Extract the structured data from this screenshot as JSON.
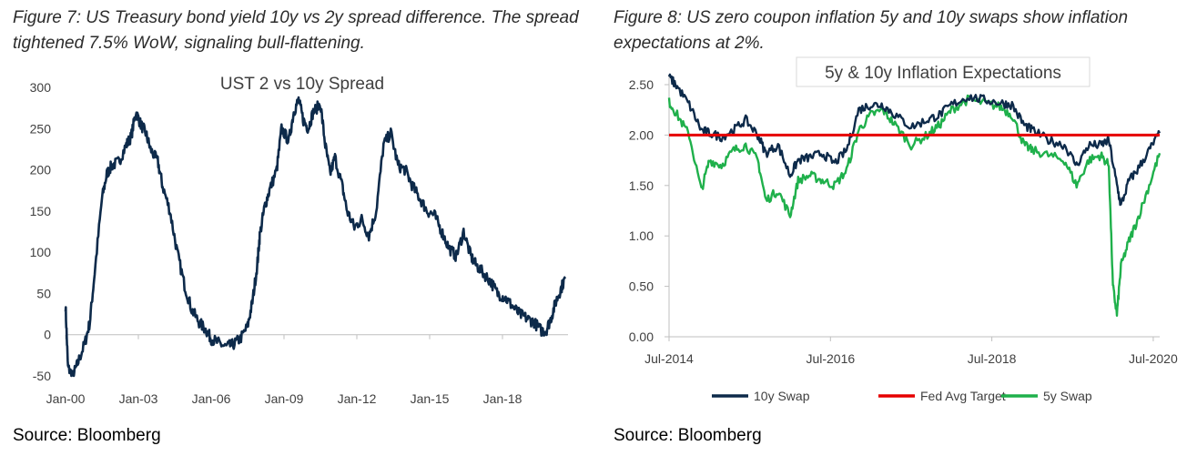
{
  "figures": [
    {
      "caption": "Figure 7: US Treasury bond yield 10y vs 2y spread difference. The spread tightened 7.5% WoW, signaling bull-flattening.",
      "source": "Source: Bloomberg"
    },
    {
      "caption": "Figure 8: US zero coupon inflation 5y and 10y swaps show inflation expectations at 2%.",
      "source": "Source: Bloomberg"
    }
  ],
  "colors": {
    "navy": "#0d2a4a",
    "red": "#e60000",
    "green": "#1fb04b",
    "axis": "#bfbfbf",
    "tick": "#404040"
  },
  "chart_data": [
    {
      "type": "line",
      "title": "UST 2 vs 10y Spread",
      "xlabel": "",
      "ylabel": "",
      "x_ticks": [
        "Jan-00",
        "Jan-03",
        "Jan-06",
        "Jan-09",
        "Jan-12",
        "Jan-15",
        "Jan-18"
      ],
      "xlim": [
        2000.0,
        2020.7
      ],
      "y_ticks": [
        300,
        250,
        200,
        150,
        100,
        50,
        0,
        -50
      ],
      "ylim": [
        -50,
        300
      ],
      "grid": false,
      "series": [
        {
          "color": "#0d2a4a",
          "x": [
            2000.0,
            2000.1,
            2000.3,
            2000.5,
            2000.8,
            2001.0,
            2001.2,
            2001.5,
            2001.7,
            2001.9,
            2002.2,
            2002.5,
            2002.7,
            2002.9,
            2003.1,
            2003.3,
            2003.5,
            2003.8,
            2004.0,
            2004.3,
            2004.6,
            2004.9,
            2005.2,
            2005.5,
            2005.8,
            2006.0,
            2006.3,
            2006.6,
            2006.9,
            2007.2,
            2007.5,
            2007.7,
            2007.9,
            2008.0,
            2008.2,
            2008.4,
            2008.7,
            2008.9,
            2009.2,
            2009.4,
            2009.6,
            2009.8,
            2010.0,
            2010.2,
            2010.5,
            2010.7,
            2010.9,
            2011.1,
            2011.4,
            2011.6,
            2011.9,
            2012.2,
            2012.5,
            2012.8,
            2013.1,
            2013.4,
            2013.7,
            2014.0,
            2014.3,
            2014.6,
            2014.9,
            2015.2,
            2015.5,
            2015.8,
            2016.1,
            2016.4,
            2016.7,
            2016.9,
            2017.2,
            2017.5,
            2017.8,
            2018.1,
            2018.4,
            2018.7,
            2019.0,
            2019.3,
            2019.6,
            2019.8,
            2020.0,
            2020.2,
            2020.4,
            2020.6
          ],
          "y": [
            35,
            -40,
            -50,
            -35,
            -10,
            15,
            75,
            165,
            195,
            205,
            210,
            230,
            240,
            270,
            255,
            245,
            225,
            210,
            180,
            150,
            100,
            60,
            30,
            15,
            5,
            -5,
            -10,
            -15,
            -12,
            -5,
            10,
            40,
            85,
            120,
            155,
            175,
            200,
            250,
            235,
            270,
            285,
            260,
            250,
            270,
            280,
            230,
            195,
            215,
            180,
            150,
            130,
            140,
            120,
            150,
            230,
            245,
            205,
            200,
            180,
            165,
            150,
            145,
            125,
            105,
            95,
            125,
            95,
            85,
            75,
            65,
            50,
            45,
            35,
            25,
            20,
            15,
            5,
            5,
            20,
            40,
            55,
            70
          ]
        }
      ]
    },
    {
      "type": "line",
      "title": "5y & 10y  Inflation Expectations",
      "xlabel": "",
      "ylabel": "",
      "x_ticks": [
        "Jul-2014",
        "Jul-2016",
        "Jul-2018",
        "Jul-2020"
      ],
      "xlim": [
        2014.5,
        2020.58
      ],
      "y_ticks": [
        "2.50",
        "2.00",
        "1.50",
        "1.00",
        "0.50",
        "0.00"
      ],
      "ylim": [
        0,
        2.5
      ],
      "grid": false,
      "legend": "bottom",
      "series": [
        {
          "name": "10y Swap",
          "color": "#0d2a4a",
          "x": [
            2014.5,
            2014.6,
            2014.75,
            2014.9,
            2015.0,
            2015.15,
            2015.3,
            2015.45,
            2015.6,
            2015.7,
            2015.85,
            2016.0,
            2016.1,
            2016.25,
            2016.4,
            2016.55,
            2016.7,
            2016.85,
            2017.0,
            2017.15,
            2017.3,
            2017.5,
            2017.7,
            2017.85,
            2018.0,
            2018.2,
            2018.4,
            2018.6,
            2018.75,
            2018.9,
            2019.0,
            2019.2,
            2019.4,
            2019.55,
            2019.7,
            2019.85,
            2019.95,
            2020.05,
            2020.1,
            2020.2,
            2020.3,
            2020.45,
            2020.58
          ],
          "y": [
            2.58,
            2.48,
            2.3,
            2.05,
            2.02,
            1.98,
            2.05,
            2.15,
            2.0,
            1.82,
            1.9,
            1.6,
            1.75,
            1.78,
            1.82,
            1.72,
            1.85,
            2.25,
            2.3,
            2.3,
            2.2,
            2.08,
            2.15,
            2.2,
            2.3,
            2.38,
            2.35,
            2.32,
            2.3,
            2.1,
            2.05,
            1.95,
            1.9,
            1.7,
            1.9,
            1.9,
            1.95,
            1.5,
            1.3,
            1.55,
            1.65,
            1.85,
            2.02
          ]
        },
        {
          "name": "Fed Avg Target",
          "color": "#e60000",
          "x": [
            2014.5,
            2020.58
          ],
          "y": [
            2.0,
            2.0
          ]
        },
        {
          "name": "5y Swap",
          "color": "#1fb04b",
          "x": [
            2014.5,
            2014.6,
            2014.75,
            2014.9,
            2015.0,
            2015.15,
            2015.3,
            2015.45,
            2015.6,
            2015.7,
            2015.85,
            2016.0,
            2016.1,
            2016.25,
            2016.4,
            2016.55,
            2016.7,
            2016.85,
            2017.0,
            2017.15,
            2017.3,
            2017.5,
            2017.7,
            2017.85,
            2018.0,
            2018.2,
            2018.4,
            2018.6,
            2018.75,
            2018.9,
            2019.0,
            2019.2,
            2019.4,
            2019.55,
            2019.7,
            2019.85,
            2019.95,
            2020.0,
            2020.05,
            2020.1,
            2020.2,
            2020.3,
            2020.45,
            2020.58
          ],
          "y": [
            2.33,
            2.2,
            2.0,
            1.45,
            1.75,
            1.7,
            1.85,
            1.9,
            1.75,
            1.35,
            1.45,
            1.2,
            1.55,
            1.6,
            1.55,
            1.5,
            1.65,
            2.05,
            2.2,
            2.25,
            2.1,
            1.9,
            2.0,
            2.1,
            2.25,
            2.35,
            2.32,
            2.28,
            2.2,
            1.9,
            1.85,
            1.8,
            1.75,
            1.5,
            1.75,
            1.8,
            1.7,
            0.5,
            0.22,
            0.7,
            0.95,
            1.15,
            1.5,
            1.82
          ]
        }
      ]
    }
  ]
}
